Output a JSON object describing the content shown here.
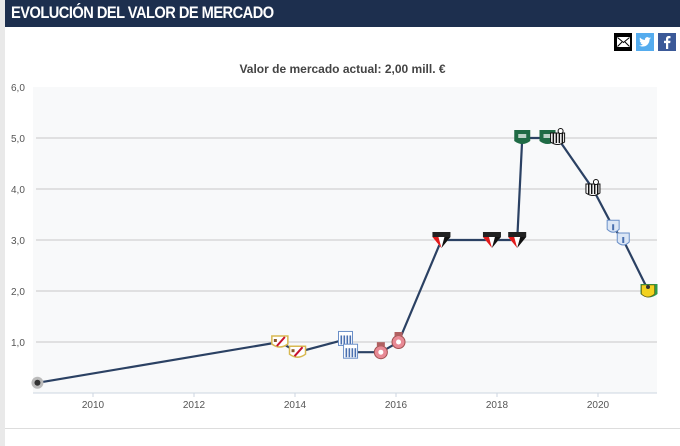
{
  "header": {
    "title": "EVOLUCIÓN DEL VALOR DE MERCADO"
  },
  "share": {
    "email": {
      "icon": "envelope-icon",
      "color": "#000000"
    },
    "twitter": {
      "icon": "twitter-icon",
      "color": "#55acee"
    },
    "facebook": {
      "icon": "facebook-icon",
      "color": "#3b5998"
    }
  },
  "subtitle": "Valor de mercado actual: 2,00 mill. €",
  "colors": {
    "header_bg": "#1d2f4e",
    "line": "#2b4163",
    "plot_bg": "#f8f9fa",
    "grid": "#c8c8c8"
  },
  "chart_data": {
    "type": "line",
    "title": "Valor de mercado actual: 2,00 mill. €",
    "xlabel": "",
    "ylabel": "",
    "xlim": [
      2008.8,
      2021.2
    ],
    "ylim": [
      0,
      6
    ],
    "y_ticks": [
      "1,0",
      "2,0",
      "3,0",
      "4,0",
      "5,0",
      "6,0"
    ],
    "x_ticks": [
      "2010",
      "2012",
      "2014",
      "2016",
      "2018",
      "2020"
    ],
    "grid": true,
    "legend": "none",
    "series": [
      {
        "name": "Valor de mercado (mill. €)",
        "points": [
          {
            "x": 2008.9,
            "y": 0.2,
            "club": "club-crest-grey"
          },
          {
            "x": 2013.7,
            "y": 1.0,
            "club": "rayo-crest"
          },
          {
            "x": 2014.05,
            "y": 0.8,
            "club": "rayo-crest"
          },
          {
            "x": 2015.0,
            "y": 1.05,
            "club": "blue-stripes-crest"
          },
          {
            "x": 2015.1,
            "y": 0.8,
            "club": "blue-stripes-crest"
          },
          {
            "x": 2015.7,
            "y": 0.8,
            "club": "pink-crown-crest"
          },
          {
            "x": 2016.05,
            "y": 1.0,
            "club": "pink-crown-crest"
          },
          {
            "x": 2016.9,
            "y": 3.0,
            "club": "spfc-crest"
          },
          {
            "x": 2017.9,
            "y": 3.0,
            "club": "spfc-crest"
          },
          {
            "x": 2018.4,
            "y": 3.0,
            "club": "spfc-crest"
          },
          {
            "x": 2018.5,
            "y": 5.0,
            "club": "green-crest"
          },
          {
            "x": 2019.0,
            "y": 5.0,
            "club": "green-crest"
          },
          {
            "x": 2019.2,
            "y": 5.0,
            "club": "santos-crest"
          },
          {
            "x": 2019.9,
            "y": 4.0,
            "club": "santos-crest"
          },
          {
            "x": 2020.3,
            "y": 3.25,
            "club": "pachuca-crest"
          },
          {
            "x": 2020.5,
            "y": 3.0,
            "club": "pachuca-crest"
          },
          {
            "x": 2021.0,
            "y": 2.0,
            "club": "yellow-green-crest"
          }
        ]
      }
    ]
  }
}
